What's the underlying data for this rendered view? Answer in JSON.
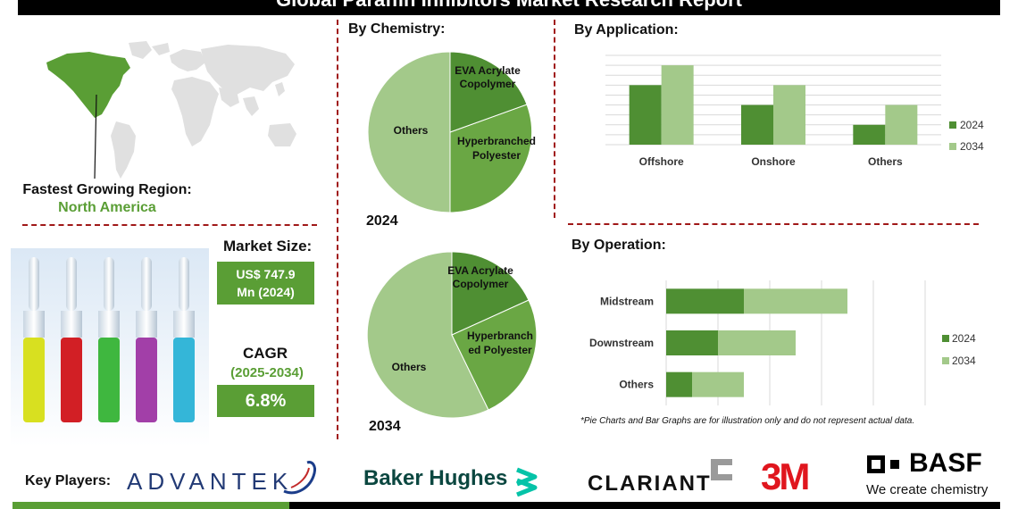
{
  "header": {
    "title": "Global Paraffin Inhibitors Market Research Report"
  },
  "region": {
    "label": "Fastest Growing Region:",
    "value": "North America"
  },
  "market_size": {
    "label": "Market Size:",
    "value_line1": "US$ 747.9",
    "value_line2": "Mn (2024)"
  },
  "cagr": {
    "label": "CAGR",
    "period": "(2025-2034)",
    "value": "6.8%"
  },
  "note": "*Pie Charts and Bar Graphs are for illustration only and do not represent actual data.",
  "key_players": {
    "label": "Key Players:",
    "advantek": "ADVANTEK",
    "baker": "Baker Hughes",
    "clariant": "CLARIANT",
    "three_m": "3M",
    "basf": "BASF",
    "basf_tagline": "We create chemistry"
  },
  "colors": {
    "accent": "#5a9e35",
    "dark_green": "#4f8f33",
    "mid_green": "#6aa744",
    "light_green": "#a3c98a",
    "divider": "#a01818"
  },
  "chart_data": [
    {
      "type": "pie",
      "title": "By Chemistry:",
      "year_label": "2024",
      "slices": [
        {
          "name": "EVA Acrylate Copolymer",
          "value": 16
        },
        {
          "name": "Hyperbranched Polyester",
          "value": 34
        },
        {
          "name": "Others",
          "value": 50
        }
      ]
    },
    {
      "type": "pie",
      "year_label": "2034",
      "slices": [
        {
          "name": "EVA Acrylate Copolymer",
          "value": 17,
          "display": "EVA Acrylate Copolymer"
        },
        {
          "name": "Hyperbranched Polyester",
          "value": 27,
          "display": "Hyperbranch ed Polyester"
        },
        {
          "name": "Others",
          "value": 56
        }
      ]
    },
    {
      "type": "bar",
      "title": "By Application:",
      "categories": [
        "Offshore",
        "Onshore",
        "Others"
      ],
      "series": [
        {
          "name": "2024",
          "values": [
            6,
            4,
            2
          ]
        },
        {
          "name": "2034",
          "values": [
            8,
            6,
            4
          ]
        }
      ],
      "ylim": [
        0,
        9
      ],
      "grid": true,
      "legend": "right"
    },
    {
      "type": "bar",
      "orientation": "horizontal",
      "stacked": true,
      "title": "By Operation:",
      "categories": [
        "Midstream",
        "Downstream",
        "Others"
      ],
      "series": [
        {
          "name": "2024",
          "values": [
            3,
            2,
            1
          ]
        },
        {
          "name": "2034",
          "values": [
            4,
            3,
            2
          ]
        }
      ],
      "xlim": [
        0,
        10
      ],
      "grid": true,
      "legend": "right"
    }
  ]
}
